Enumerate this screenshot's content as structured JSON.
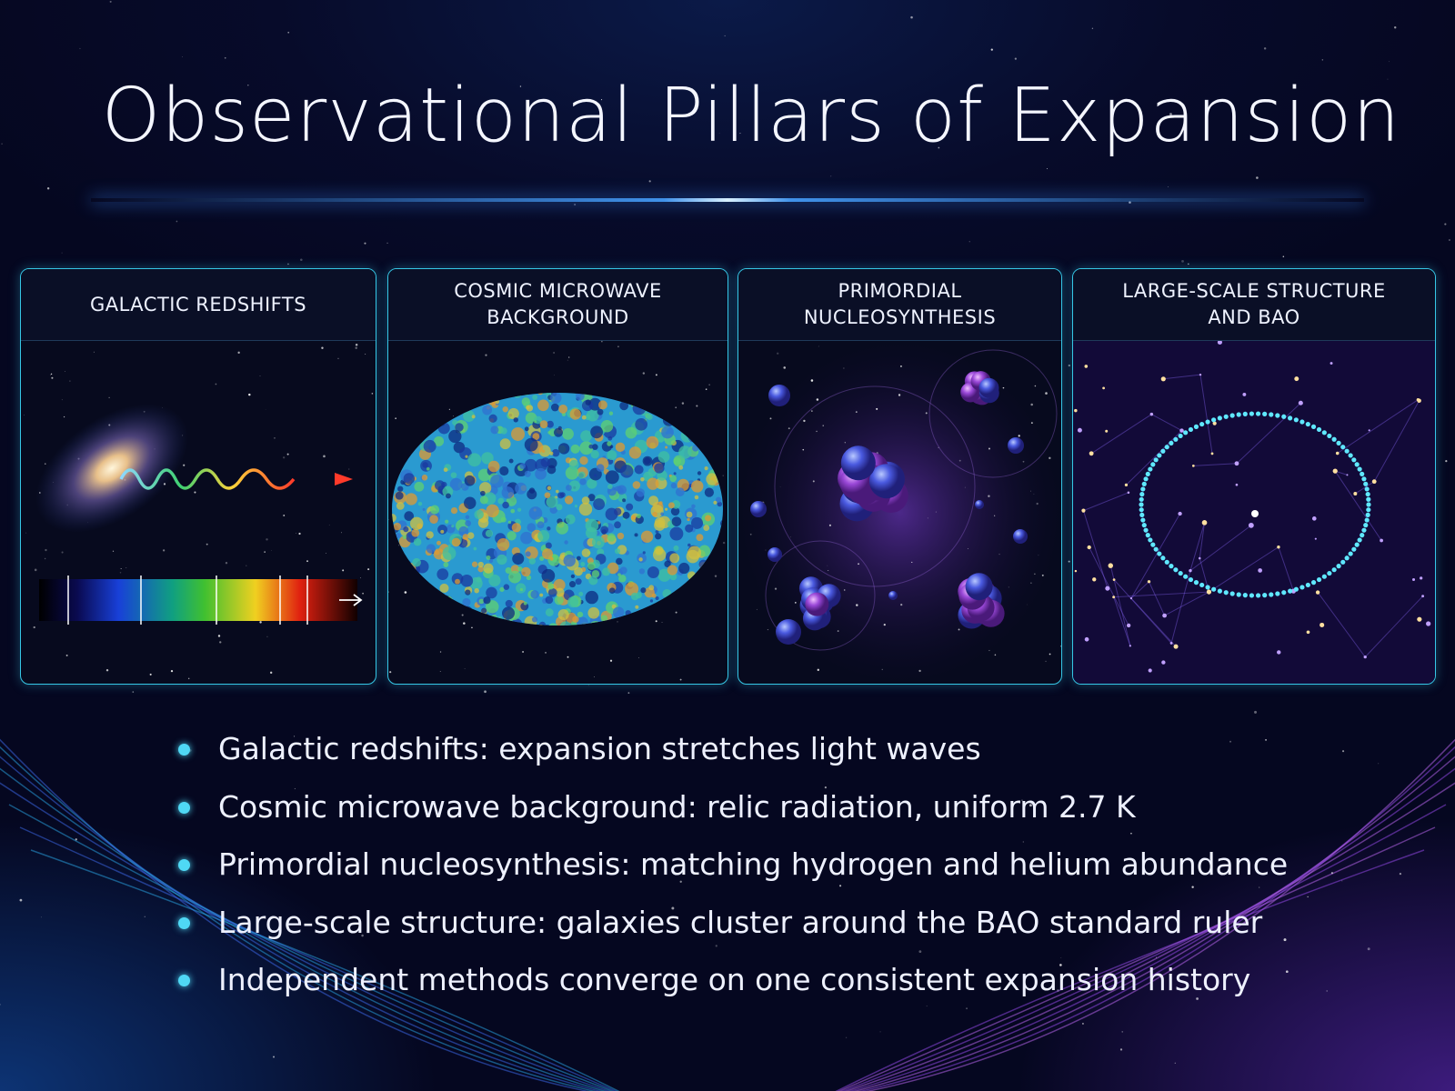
{
  "header": {
    "title": "Observational Pillars of Expansion"
  },
  "panels": [
    {
      "title_lines": [
        "GALACTIC REDSHIFTS"
      ]
    },
    {
      "title_lines": [
        "COSMIC MICROWAVE",
        "BACKGROUND"
      ]
    },
    {
      "title_lines": [
        "PRIMORDIAL",
        "NUCLEOSYNTHESIS"
      ]
    },
    {
      "title_lines": [
        "LARGE-SCALE STRUCTURE",
        "AND BAO"
      ]
    }
  ],
  "bullets": [
    "Galactic redshifts: expansion stretches light waves",
    "Cosmic microwave background: relic radiation, uniform 2.7 K",
    "Primordial nucleosynthesis: matching hydrogen and helium abundance",
    "Large-scale structure: galaxies cluster around the BAO standard ruler",
    "Independent methods converge on one consistent expansion history"
  ]
}
